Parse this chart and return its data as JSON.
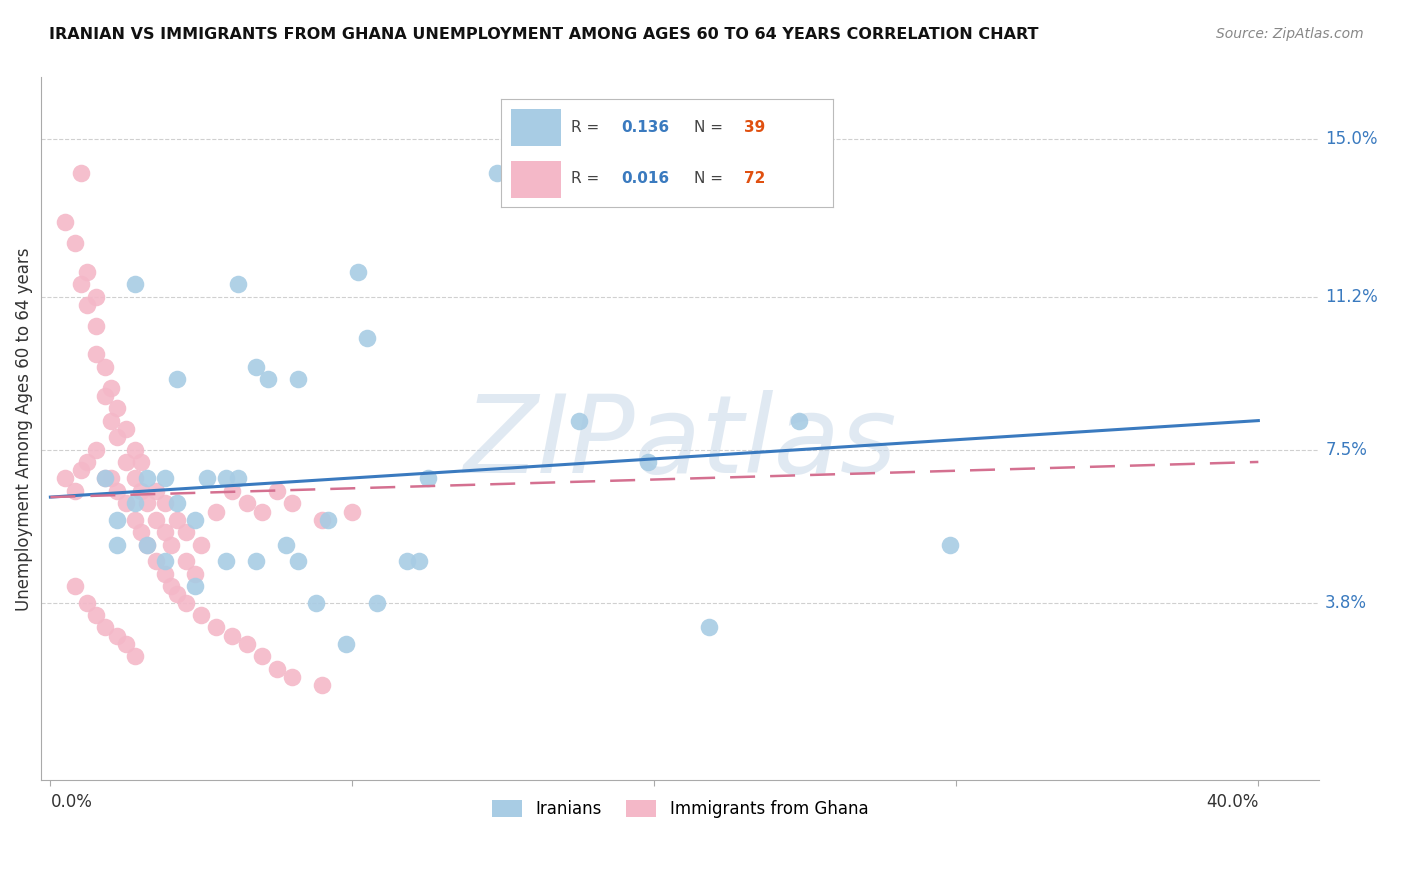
{
  "title": "IRANIAN VS IMMIGRANTS FROM GHANA UNEMPLOYMENT AMONG AGES 60 TO 64 YEARS CORRELATION CHART",
  "source": "Source: ZipAtlas.com",
  "ylabel": "Unemployment Among Ages 60 to 64 years",
  "ytick_labels": [
    "15.0%",
    "11.2%",
    "7.5%",
    "3.8%"
  ],
  "ytick_values": [
    0.15,
    0.112,
    0.075,
    0.038
  ],
  "ylim": [
    -0.005,
    0.165
  ],
  "xlim": [
    -0.003,
    0.42
  ],
  "legend1_R": "0.136",
  "legend1_N": "39",
  "legend2_R": "0.016",
  "legend2_N": "72",
  "blue_color": "#a8cce4",
  "pink_color": "#f4b8c8",
  "line_blue": "#3a7abf",
  "line_pink": "#d47090",
  "iranians_x": [
    0.018,
    0.022,
    0.028,
    0.032,
    0.038,
    0.042,
    0.048,
    0.052,
    0.058,
    0.062,
    0.068,
    0.072,
    0.082,
    0.092,
    0.105,
    0.125,
    0.148,
    0.175,
    0.248,
    0.298,
    0.022,
    0.032,
    0.038,
    0.048,
    0.058,
    0.068,
    0.078,
    0.088,
    0.098,
    0.108,
    0.118,
    0.198,
    0.218,
    0.102,
    0.122,
    0.082,
    0.028,
    0.042,
    0.062
  ],
  "iranians_y": [
    0.068,
    0.058,
    0.062,
    0.068,
    0.068,
    0.062,
    0.058,
    0.068,
    0.068,
    0.068,
    0.095,
    0.092,
    0.092,
    0.058,
    0.102,
    0.068,
    0.142,
    0.082,
    0.082,
    0.052,
    0.052,
    0.052,
    0.048,
    0.042,
    0.048,
    0.048,
    0.052,
    0.038,
    0.028,
    0.038,
    0.048,
    0.072,
    0.032,
    0.118,
    0.048,
    0.048,
    0.115,
    0.092,
    0.115
  ],
  "ghana_x": [
    0.005,
    0.008,
    0.01,
    0.01,
    0.012,
    0.012,
    0.015,
    0.015,
    0.015,
    0.018,
    0.018,
    0.02,
    0.02,
    0.022,
    0.022,
    0.025,
    0.025,
    0.028,
    0.028,
    0.03,
    0.03,
    0.032,
    0.035,
    0.035,
    0.038,
    0.038,
    0.04,
    0.042,
    0.045,
    0.045,
    0.048,
    0.05,
    0.055,
    0.06,
    0.065,
    0.07,
    0.075,
    0.08,
    0.09,
    0.1,
    0.005,
    0.008,
    0.01,
    0.012,
    0.015,
    0.018,
    0.02,
    0.022,
    0.025,
    0.028,
    0.03,
    0.032,
    0.035,
    0.038,
    0.04,
    0.042,
    0.045,
    0.05,
    0.055,
    0.06,
    0.065,
    0.07,
    0.075,
    0.08,
    0.09,
    0.008,
    0.012,
    0.015,
    0.018,
    0.022,
    0.025,
    0.028
  ],
  "ghana_y": [
    0.13,
    0.125,
    0.115,
    0.142,
    0.11,
    0.118,
    0.105,
    0.098,
    0.112,
    0.088,
    0.095,
    0.082,
    0.09,
    0.078,
    0.085,
    0.072,
    0.08,
    0.068,
    0.075,
    0.065,
    0.072,
    0.062,
    0.058,
    0.065,
    0.055,
    0.062,
    0.052,
    0.058,
    0.048,
    0.055,
    0.045,
    0.052,
    0.06,
    0.065,
    0.062,
    0.06,
    0.065,
    0.062,
    0.058,
    0.06,
    0.068,
    0.065,
    0.07,
    0.072,
    0.075,
    0.068,
    0.068,
    0.065,
    0.062,
    0.058,
    0.055,
    0.052,
    0.048,
    0.045,
    0.042,
    0.04,
    0.038,
    0.035,
    0.032,
    0.03,
    0.028,
    0.025,
    0.022,
    0.02,
    0.018,
    0.042,
    0.038,
    0.035,
    0.032,
    0.03,
    0.028,
    0.025
  ],
  "watermark": "ZIPatlas",
  "background_color": "#ffffff",
  "grid_color": "#d0d0d0"
}
